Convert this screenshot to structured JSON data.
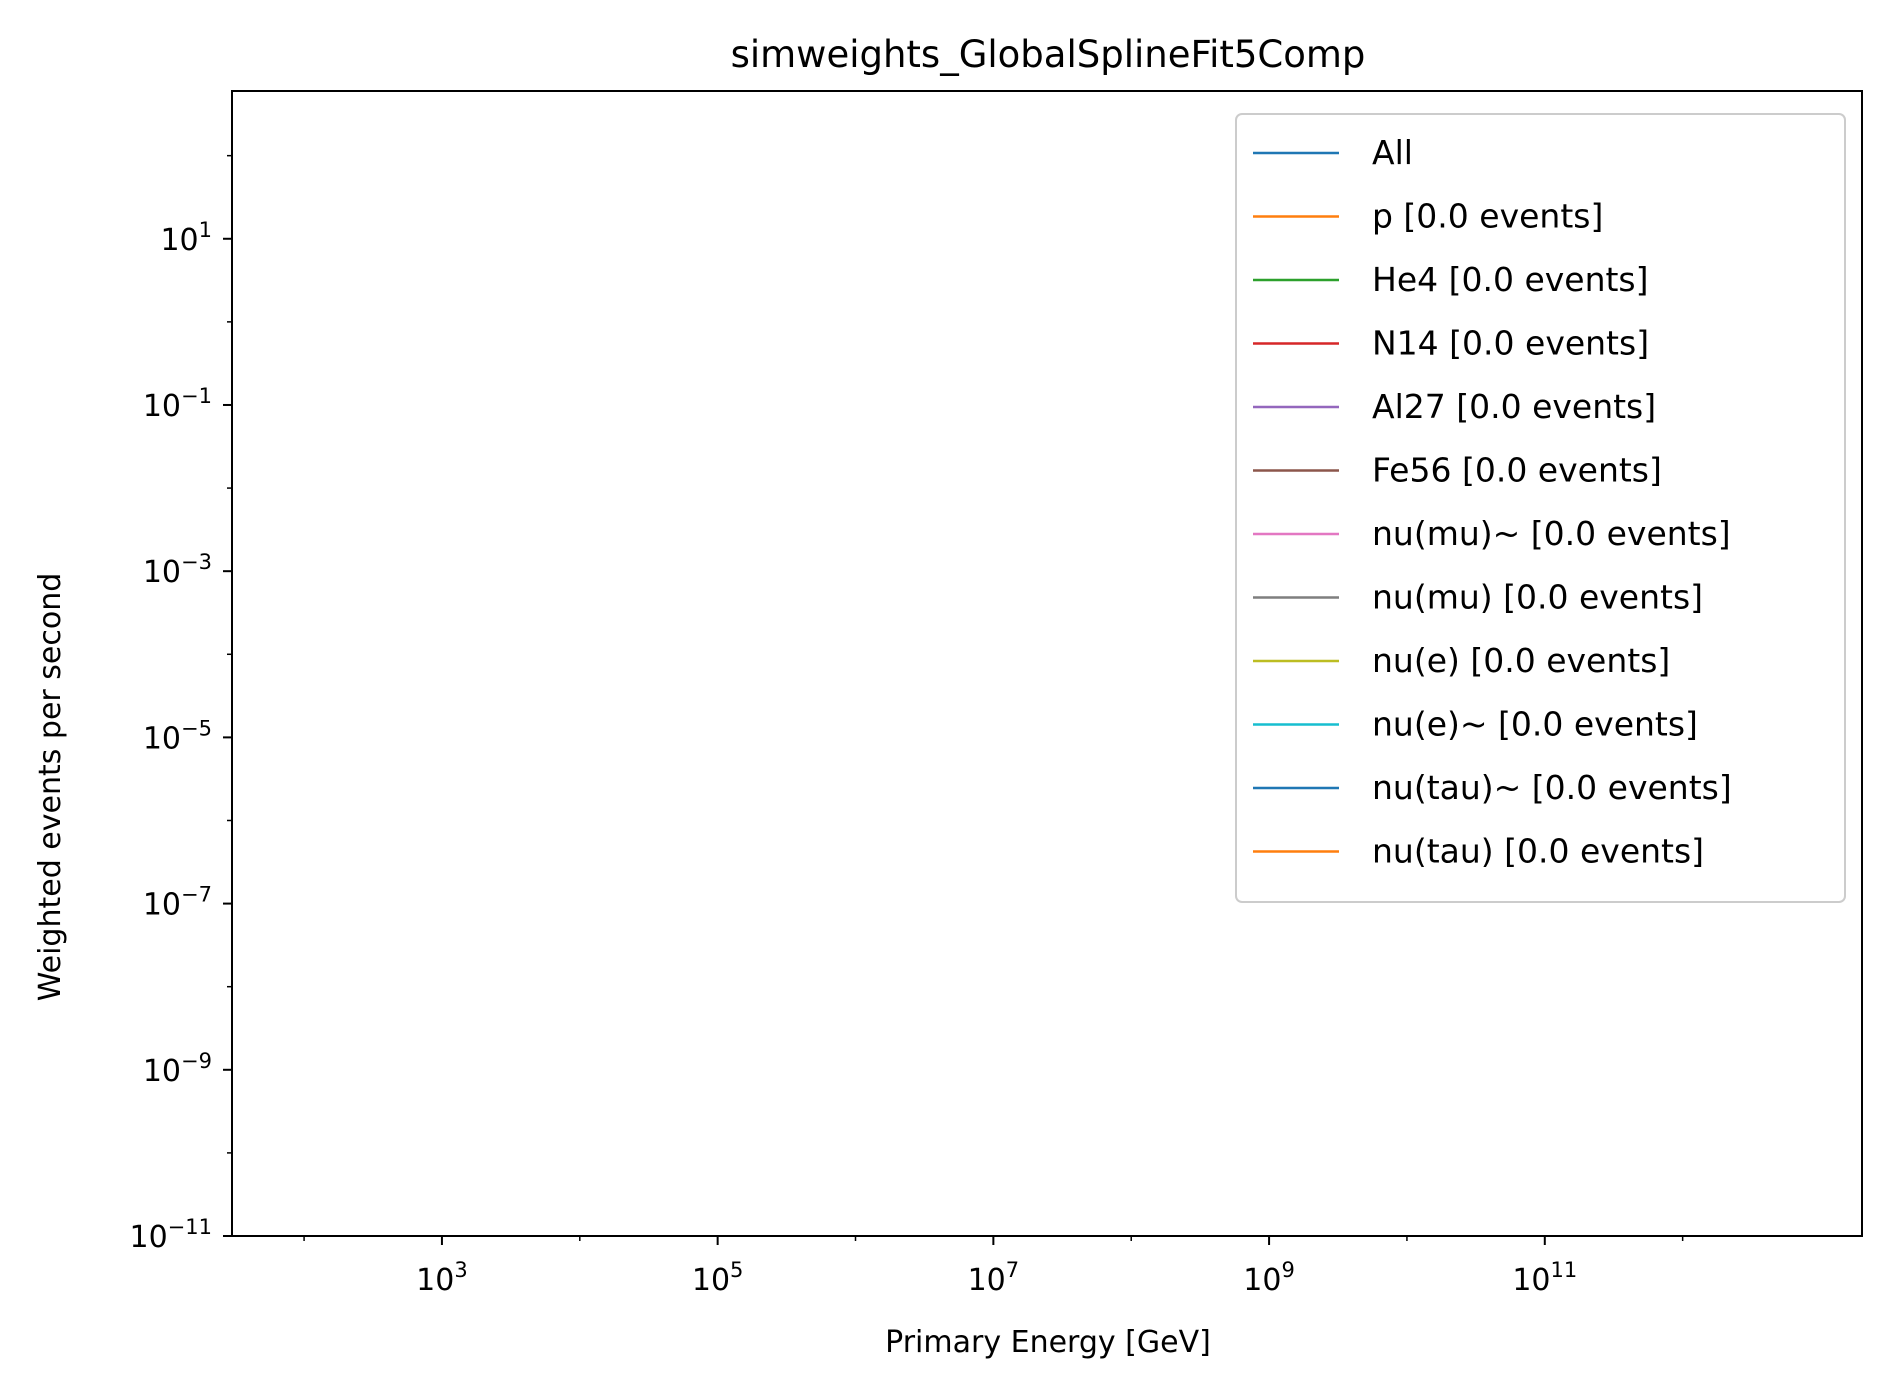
{
  "chart_data": {
    "type": "line",
    "title": "simweights_GlobalSplineFit5Comp",
    "xlabel": "Primary Energy [GeV]",
    "ylabel": "Weighted events per second",
    "x_scale": "log",
    "y_scale": "log",
    "xlim": [
      30,
      20000000000000
    ],
    "ylim": [
      1e-11,
      600
    ],
    "grid": false,
    "legend_position": "top-right",
    "x_ticks": [
      {
        "value": 1000,
        "base": "10",
        "exp": "3"
      },
      {
        "value": 100000,
        "base": "10",
        "exp": "5"
      },
      {
        "value": 10000000,
        "base": "10",
        "exp": "7"
      },
      {
        "value": 1000000000,
        "base": "10",
        "exp": "9"
      },
      {
        "value": 100000000000,
        "base": "10",
        "exp": "11"
      }
    ],
    "y_ticks": [
      {
        "value": 1e-11,
        "base": "10",
        "exp": "−11"
      },
      {
        "value": 1e-09,
        "base": "10",
        "exp": "−9"
      },
      {
        "value": 1e-07,
        "base": "10",
        "exp": "−7"
      },
      {
        "value": 1e-05,
        "base": "10",
        "exp": "−5"
      },
      {
        "value": 0.001,
        "base": "10",
        "exp": "−3"
      },
      {
        "value": 0.1,
        "base": "10",
        "exp": "−1"
      },
      {
        "value": 10,
        "base": "10",
        "exp": "1"
      }
    ],
    "series": [
      {
        "name": "All",
        "color": "#1f77b4",
        "values": []
      },
      {
        "name": "p [0.0 events]",
        "color": "#ff7f0e",
        "values": []
      },
      {
        "name": "He4 [0.0 events]",
        "color": "#2ca02c",
        "values": []
      },
      {
        "name": "N14 [0.0 events]",
        "color": "#d62728",
        "values": []
      },
      {
        "name": "Al27 [0.0 events]",
        "color": "#9467bd",
        "values": []
      },
      {
        "name": "Fe56 [0.0 events]",
        "color": "#8c564b",
        "values": []
      },
      {
        "name": "nu(mu)~ [0.0 events]",
        "color": "#e377c2",
        "values": []
      },
      {
        "name": "nu(mu) [0.0 events]",
        "color": "#7f7f7f",
        "values": []
      },
      {
        "name": "nu(e) [0.0 events]",
        "color": "#bcbd22",
        "values": []
      },
      {
        "name": "nu(e)~ [0.0 events]",
        "color": "#17becf",
        "values": []
      },
      {
        "name": "nu(tau)~ [0.0 events]",
        "color": "#1f77b4",
        "values": []
      },
      {
        "name": "nu(tau) [0.0 events]",
        "color": "#ff7f0e",
        "values": []
      }
    ]
  }
}
